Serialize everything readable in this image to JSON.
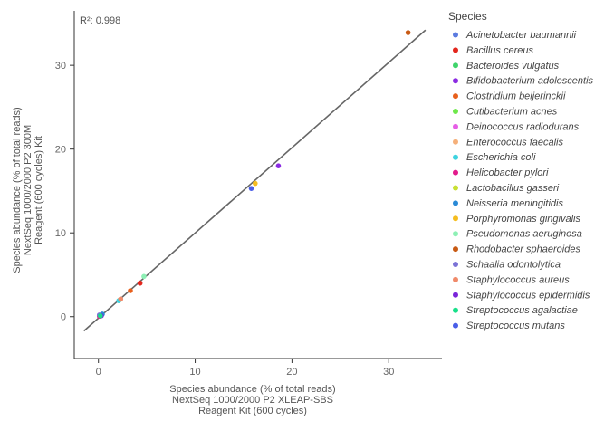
{
  "chart_data": {
    "type": "scatter",
    "annotation": "R²: 0.998",
    "xlabel": [
      "Species abundance (% of total reads)",
      "NextSeq 1000/2000 P2 XLEAP-SBS",
      "Reagent Kit (600 cycles)"
    ],
    "ylabel": [
      "Species abundance (% of total reads)",
      "NextSeq 1000/2000 P2 300M",
      "Reagent (600 cycles) Kit"
    ],
    "xlim": [
      -2.5,
      35.5
    ],
    "ylim": [
      -5,
      36.5
    ],
    "x_ticks": [
      0,
      10,
      20,
      30
    ],
    "y_ticks": [
      0,
      10,
      20,
      30
    ],
    "grid": false,
    "legend_title": "Species",
    "legend_position": "right",
    "fit_line": {
      "x": [
        -1.5,
        33.8
      ],
      "y": [
        -1.7,
        34.2
      ],
      "color": "#666666"
    },
    "series": [
      {
        "name": "Acinetobacter baumannii",
        "color": "#5b7be0",
        "points": [
          [
            0.2,
            0.1
          ]
        ]
      },
      {
        "name": "Bacillus cereus",
        "color": "#e3261d",
        "points": [
          [
            4.3,
            4.0
          ]
        ]
      },
      {
        "name": "Bacteroides vulgatus",
        "color": "#3fd46b",
        "points": [
          [
            0.3,
            0.2
          ]
        ]
      },
      {
        "name": "Bifidobacterium adolescentis",
        "color": "#8b2be2",
        "points": [
          [
            18.6,
            18.0
          ]
        ]
      },
      {
        "name": "Clostridium beijerinckii",
        "color": "#e8601c",
        "points": [
          [
            3.3,
            3.1
          ]
        ]
      },
      {
        "name": "Cutibacterium acnes",
        "color": "#6ee84a",
        "points": [
          [
            0.1,
            0.1
          ]
        ]
      },
      {
        "name": "Deinococcus radiodurans",
        "color": "#e65fe6",
        "points": [
          [
            0.2,
            0.2
          ]
        ]
      },
      {
        "name": "Enterococcus faecalis",
        "color": "#f5b07a",
        "points": [
          [
            2.2,
            2.0
          ]
        ]
      },
      {
        "name": "Escherichia coli",
        "color": "#3dd3e0",
        "points": [
          [
            2.1,
            1.9
          ]
        ]
      },
      {
        "name": "Helicobacter pylori",
        "color": "#e21b8c",
        "points": [
          [
            0.1,
            0.05
          ]
        ]
      },
      {
        "name": "Lactobacillus gasseri",
        "color": "#c9e033",
        "points": [
          [
            0.2,
            0.1
          ]
        ]
      },
      {
        "name": "Neisseria meningitidis",
        "color": "#2a8ad6",
        "points": [
          [
            0.4,
            0.3
          ]
        ]
      },
      {
        "name": "Porphyromonas gingivalis",
        "color": "#f5bd1f",
        "points": [
          [
            16.2,
            15.9
          ]
        ]
      },
      {
        "name": "Pseudomonas aeruginosa",
        "color": "#8ef0b5",
        "points": [
          [
            4.7,
            4.8
          ]
        ]
      },
      {
        "name": "Rhodobacter sphaeroides",
        "color": "#c85a14",
        "points": [
          [
            32.0,
            33.9
          ]
        ]
      },
      {
        "name": "Schaalia odontolytica",
        "color": "#7b72d6",
        "points": [
          [
            0.1,
            0.2
          ]
        ]
      },
      {
        "name": "Staphylococcus aureus",
        "color": "#f08a6a",
        "points": [
          [
            2.3,
            2.1
          ]
        ]
      },
      {
        "name": "Staphylococcus epidermidis",
        "color": "#7a25d9",
        "points": [
          [
            0.3,
            0.1
          ]
        ]
      },
      {
        "name": "Streptococcus agalactiae",
        "color": "#18e08a",
        "points": [
          [
            0.2,
            0.1
          ]
        ]
      },
      {
        "name": "Streptococcus mutans",
        "color": "#4a5ee8",
        "points": [
          [
            15.8,
            15.3
          ]
        ]
      }
    ]
  }
}
